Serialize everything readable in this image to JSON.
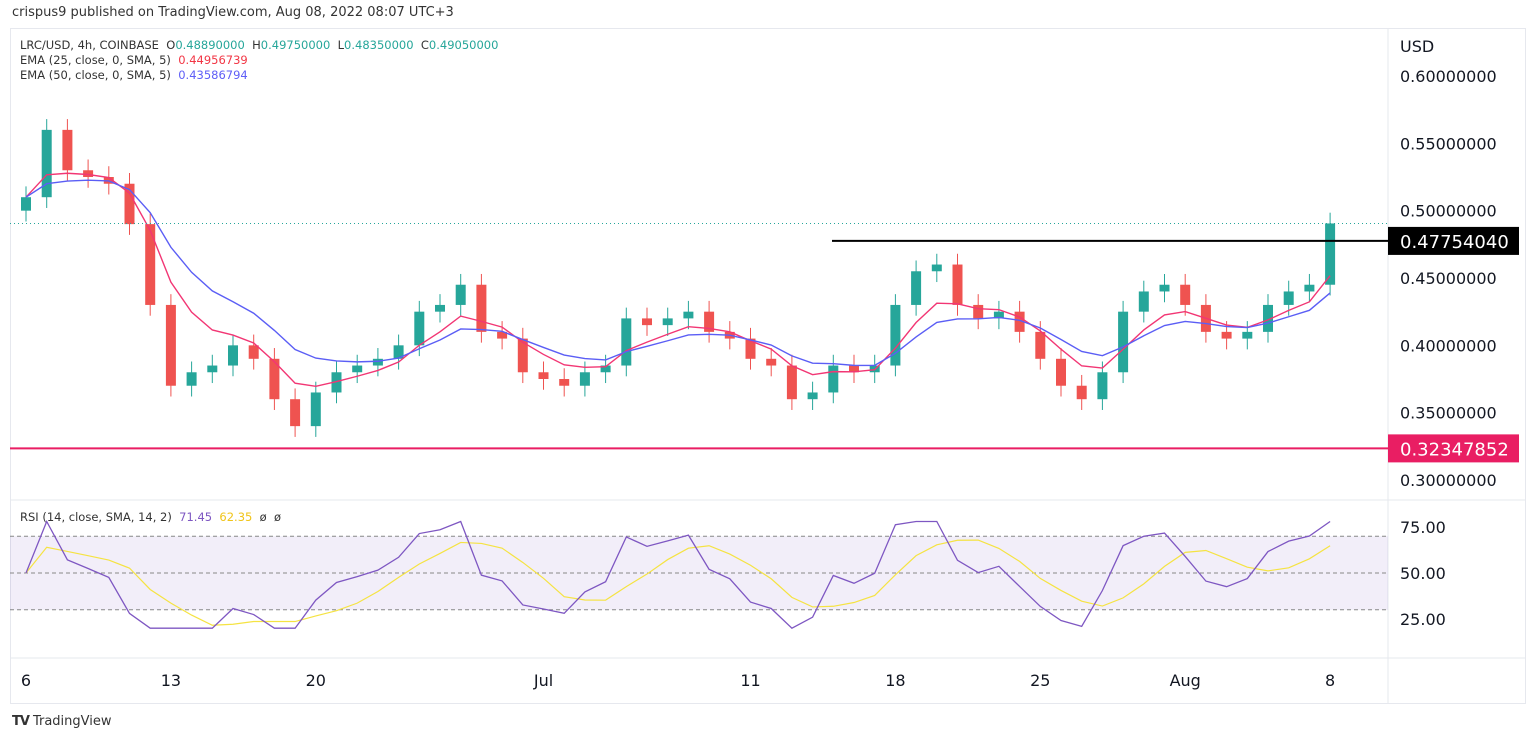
{
  "header": {
    "published": "crispus9 published on TradingView.com, Aug 08, 2022 08:07 UTC+3"
  },
  "legend": {
    "symbol": "LRC/USD, 4h, COINBASE",
    "o_label": "O",
    "o": "0.48890000",
    "h_label": "H",
    "h": "0.49750000",
    "l_label": "L",
    "l": "0.48350000",
    "c_label": "C",
    "c": "0.49050000",
    "ema25_label": "EMA (25, close, 0, SMA, 5)",
    "ema25": "0.44956739",
    "ema50_label": "EMA (50, close, 0, SMA, 5)",
    "ema50": "0.43586794"
  },
  "rsi_legend": {
    "label": "RSI (14, close, SMA, 14, 2)",
    "rsi": "71.45",
    "sma": "62.35",
    "extra1": "ø",
    "extra2": "ø"
  },
  "footer": {
    "brand": "TradingView"
  },
  "colors": {
    "up": "#26a69a",
    "down": "#ef5350",
    "ema25": "#f23674",
    "ema50": "#5b5ef5",
    "rsi": "#7e57c2",
    "rsi_ma": "#f5e342",
    "support": "#e91e63",
    "resistance": "#000000"
  },
  "chart_data": {
    "type": "candlestick",
    "currency_label": "USD",
    "y_ticks": [
      "0.60000000",
      "0.55000000",
      "0.50000000",
      "0.45000000",
      "0.40000000",
      "0.35000000",
      "0.30000000"
    ],
    "ylim": [
      0.3,
      0.6
    ],
    "x_ticks": [
      {
        "label": "6",
        "day": 0
      },
      {
        "label": "13",
        "day": 7
      },
      {
        "label": "20",
        "day": 14
      },
      {
        "label": "Jul",
        "day": 25
      },
      {
        "label": "11",
        "day": 35
      },
      {
        "label": "18",
        "day": 42
      },
      {
        "label": "25",
        "day": 49
      },
      {
        "label": "Aug",
        "day": 56
      },
      {
        "label": "8",
        "day": 63
      }
    ],
    "start_date": "2022-06-06",
    "closes": [
      0.51,
      0.56,
      0.53,
      0.525,
      0.52,
      0.49,
      0.43,
      0.37,
      0.38,
      0.385,
      0.4,
      0.39,
      0.36,
      0.34,
      0.365,
      0.38,
      0.385,
      0.39,
      0.4,
      0.425,
      0.43,
      0.445,
      0.41,
      0.405,
      0.38,
      0.375,
      0.37,
      0.38,
      0.385,
      0.42,
      0.415,
      0.42,
      0.425,
      0.41,
      0.405,
      0.39,
      0.385,
      0.36,
      0.365,
      0.385,
      0.38,
      0.385,
      0.43,
      0.455,
      0.46,
      0.43,
      0.42,
      0.425,
      0.41,
      0.39,
      0.37,
      0.36,
      0.38,
      0.425,
      0.44,
      0.445,
      0.43,
      0.41,
      0.405,
      0.41,
      0.43,
      0.44,
      0.445,
      0.4905
    ],
    "levels": [
      {
        "label": "0.47754040",
        "value": 0.4775404,
        "kind": "resistance"
      },
      {
        "label": "0.32347852",
        "value": 0.32347852,
        "kind": "support"
      }
    ],
    "last_price": 0.4905,
    "rsi": {
      "y_ticks": [
        "75.00",
        "50.00",
        "25.00"
      ],
      "ylim": [
        15,
        80
      ],
      "upper": 70,
      "middle": 50,
      "lower": 30
    }
  }
}
